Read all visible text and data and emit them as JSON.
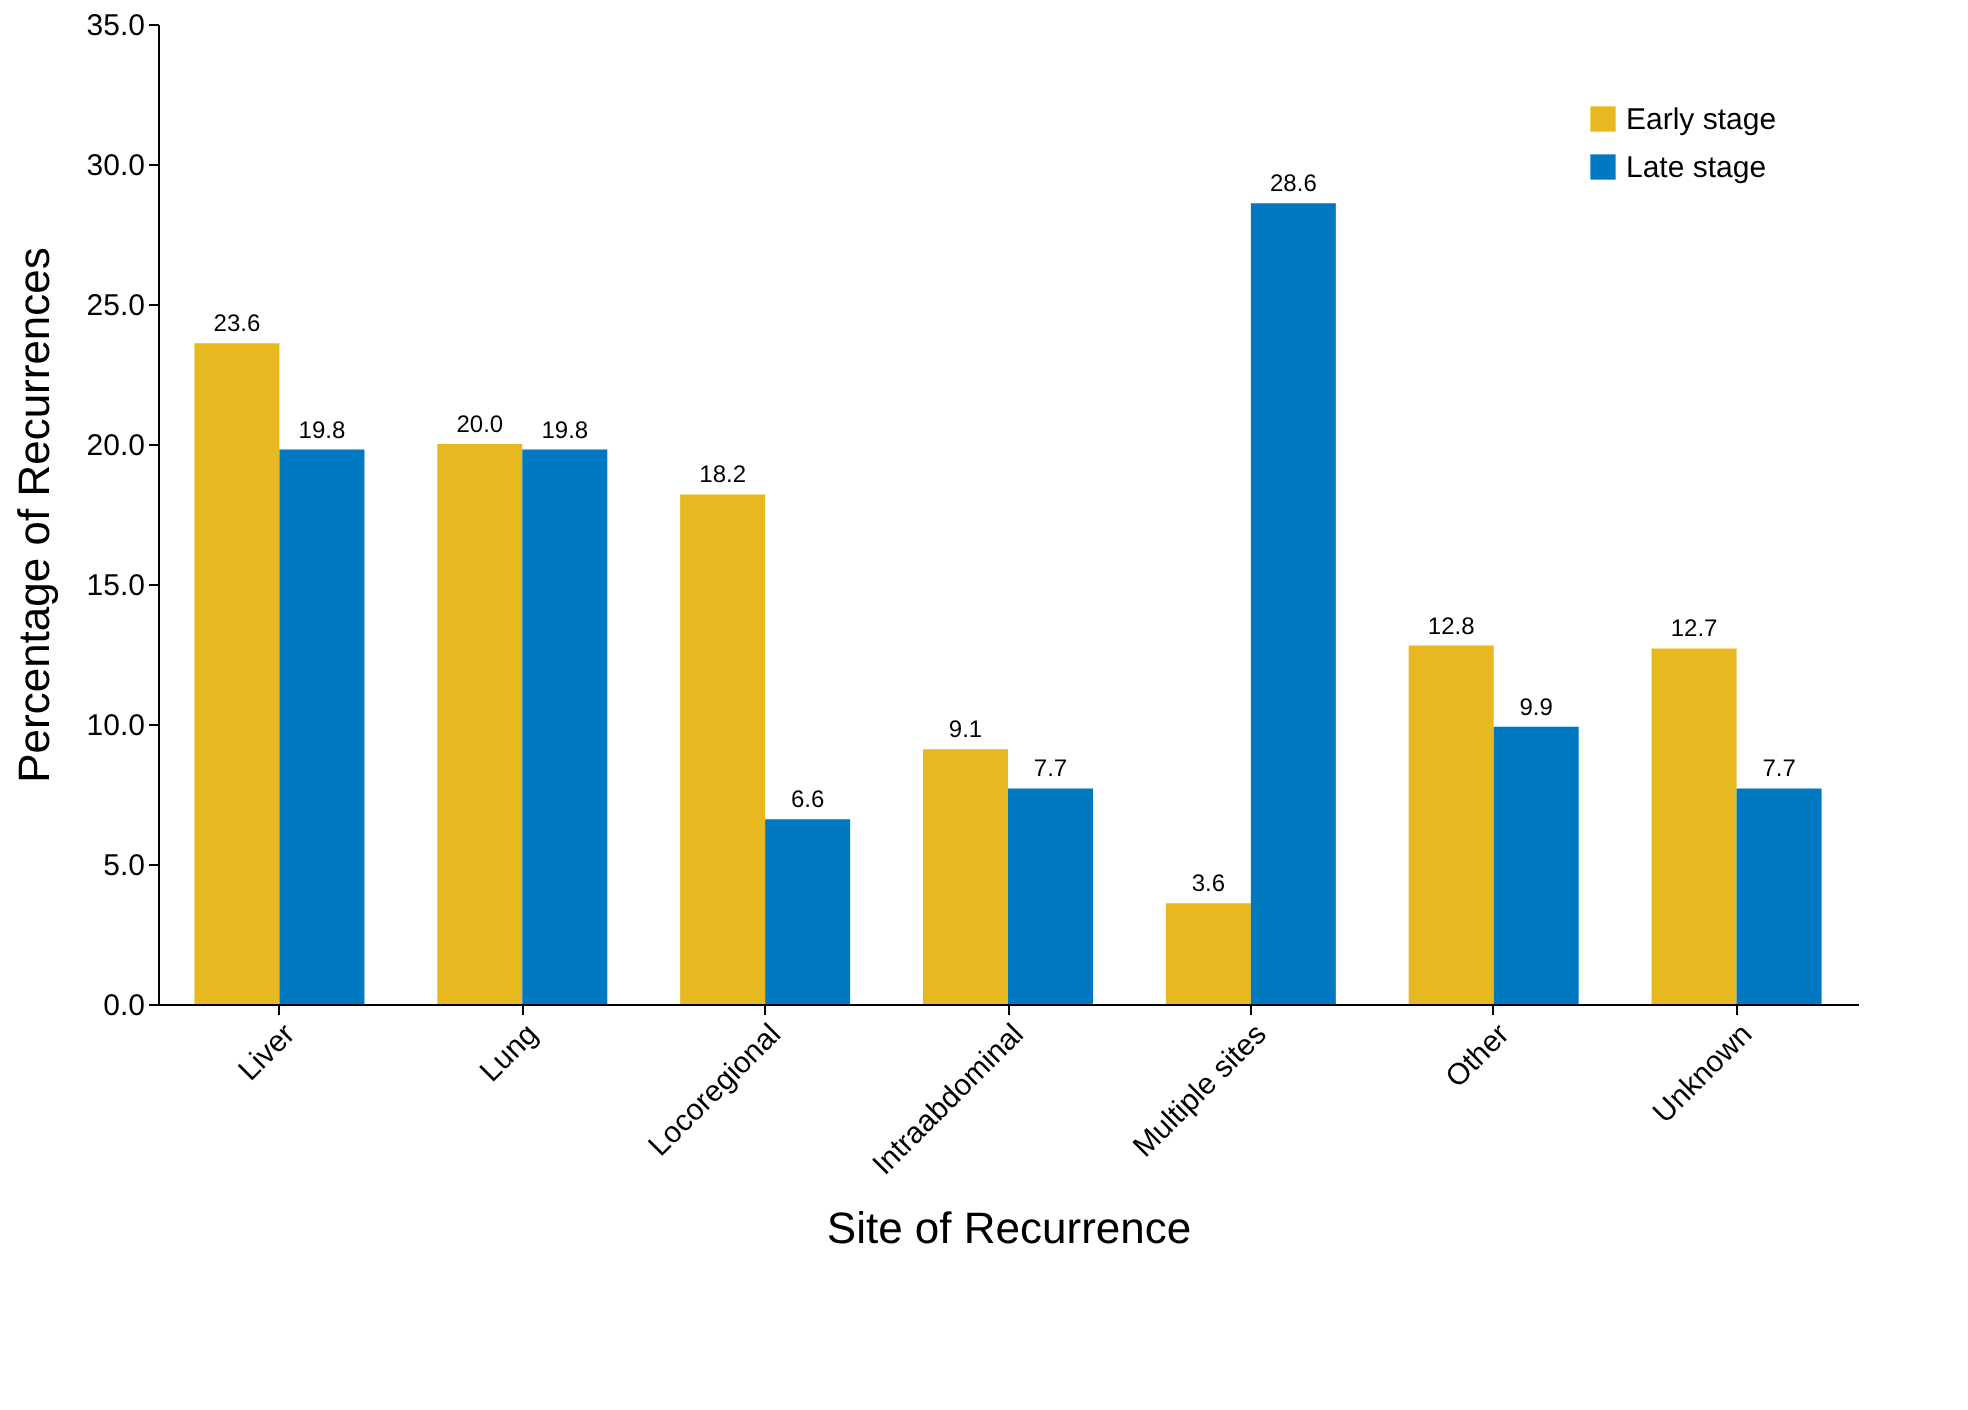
{
  "chart_data": {
    "type": "bar",
    "xlabel": "Site of Recurrence",
    "ylabel": "Percentage of Recurrences",
    "categories": [
      "Liver",
      "Lung",
      "Locoregional",
      "Intraabdominal",
      "Multiple sites",
      "Other",
      "Unknown"
    ],
    "series": [
      {
        "name": "Early stage",
        "color": "#e8b820",
        "values": [
          23.6,
          20.0,
          18.2,
          9.1,
          3.6,
          12.8,
          12.7
        ],
        "value_labels": [
          "23.6",
          "20.0",
          "18.2",
          "9.1",
          "3.6",
          "12.8",
          "12.7"
        ]
      },
      {
        "name": "Late stage",
        "color": "#0079c1",
        "values": [
          19.8,
          19.8,
          6.6,
          7.7,
          28.6,
          9.9,
          7.7
        ],
        "value_labels": [
          "19.8",
          "19.8",
          "6.6",
          "7.7",
          "28.6",
          "9.9",
          "7.7"
        ]
      }
    ],
    "ylim": [
      0,
      35
    ],
    "yticks": [
      {
        "value": 0,
        "label": "0.0"
      },
      {
        "value": 5,
        "label": "5.0"
      },
      {
        "value": 10,
        "label": "10.0"
      },
      {
        "value": 15,
        "label": "15.0"
      },
      {
        "value": 20,
        "label": "20.0"
      },
      {
        "value": 25,
        "label": "25.0"
      },
      {
        "value": 30,
        "label": "30.0"
      },
      {
        "value": 35,
        "label": "35.0"
      }
    ],
    "legend": "top right",
    "grid": false
  }
}
